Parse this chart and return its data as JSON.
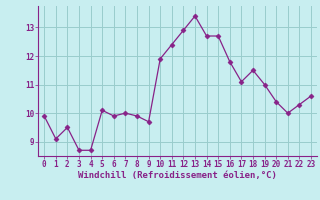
{
  "x": [
    0,
    1,
    2,
    3,
    4,
    5,
    6,
    7,
    8,
    9,
    10,
    11,
    12,
    13,
    14,
    15,
    16,
    17,
    18,
    19,
    20,
    21,
    22,
    23
  ],
  "y": [
    9.9,
    9.1,
    9.5,
    8.7,
    8.7,
    10.1,
    9.9,
    10.0,
    9.9,
    9.7,
    11.9,
    12.4,
    12.9,
    13.4,
    12.7,
    12.7,
    11.8,
    11.1,
    11.5,
    11.0,
    10.4,
    10.0,
    10.3,
    10.6
  ],
  "line_color": "#882288",
  "marker": "D",
  "marker_size": 2.5,
  "bg_color": "#c8eef0",
  "grid_color": "#99cccc",
  "xlabel": "Windchill (Refroidissement éolien,°C)",
  "ylim": [
    8.5,
    13.75
  ],
  "yticks": [
    9,
    10,
    11,
    12,
    13
  ],
  "xticks": [
    0,
    1,
    2,
    3,
    4,
    5,
    6,
    7,
    8,
    9,
    10,
    11,
    12,
    13,
    14,
    15,
    16,
    17,
    18,
    19,
    20,
    21,
    22,
    23
  ],
  "font_color": "#882288",
  "tick_fontsize": 5.5,
  "xlabel_fontsize": 6.5,
  "xlim": [
    -0.5,
    23.5
  ]
}
